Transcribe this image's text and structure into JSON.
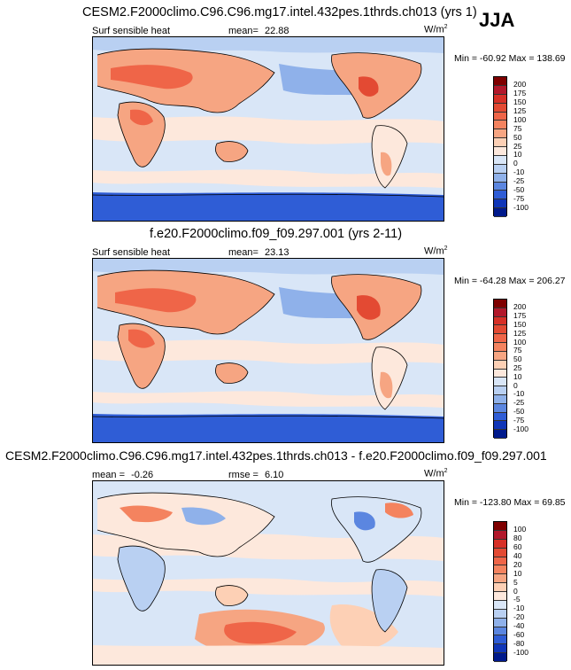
{
  "season_label": "JJA",
  "panels": [
    {
      "title": "CESM2.F2000climo.C96.C96.mg17.intel.432pes.1thrds.ch013 (yrs 1)",
      "left_label": "Surf sensible heat",
      "stat_label": "mean=",
      "stat_value": "22.88",
      "units": "W/m",
      "units_exp": "2",
      "min_label": "Min =",
      "min_value": "-60.92",
      "max_label": "Max =",
      "max_value": "138.69",
      "colorbar": [
        "200",
        "175",
        "150",
        "125",
        "100",
        "75",
        "50",
        "25",
        "10",
        "0",
        "-10",
        "-25",
        "-50",
        "-75",
        "-100"
      ]
    },
    {
      "title": "f.e20.F2000climo.f09_f09.297.001 (yrs 2-11)",
      "left_label": "Surf sensible heat",
      "stat_label": "mean=",
      "stat_value": "23.13",
      "units": "W/m",
      "units_exp": "2",
      "min_label": "Min =",
      "min_value": "-64.28",
      "max_label": "Max =",
      "max_value": "206.27",
      "colorbar": [
        "200",
        "175",
        "150",
        "125",
        "100",
        "75",
        "50",
        "25",
        "10",
        "0",
        "-10",
        "-25",
        "-50",
        "-75",
        "-100"
      ]
    },
    {
      "title": "CESM2.F2000climo.C96.C96.mg17.intel.432pes.1thrds.ch013 - f.e20.F2000climo.f09_f09.297.001",
      "left_label": "mean =",
      "left_value": "-0.26",
      "stat_label": "rmse =",
      "stat_value": "6.10",
      "units": "W/m",
      "units_exp": "2",
      "min_label": "Min =",
      "min_value": "-123.80",
      "max_label": "Max =",
      "max_value": "69.85",
      "colorbar": [
        "100",
        "80",
        "60",
        "40",
        "20",
        "10",
        "5",
        "0",
        "-5",
        "-10",
        "-20",
        "-40",
        "-60",
        "-80",
        "-100"
      ]
    }
  ],
  "chart_data": {
    "type": "heatmap",
    "colorbar_colors": [
      "#7f0000",
      "#b2182b",
      "#d73027",
      "#e34a33",
      "#ef6548",
      "#f4835f",
      "#f6a582",
      "#fdd0b5",
      "#fde8dc",
      "#d9e6f7",
      "#b9d0f2",
      "#8fb1ea",
      "#5b86e0",
      "#2f5dd6",
      "#1036b8",
      "#001a8c"
    ]
  }
}
